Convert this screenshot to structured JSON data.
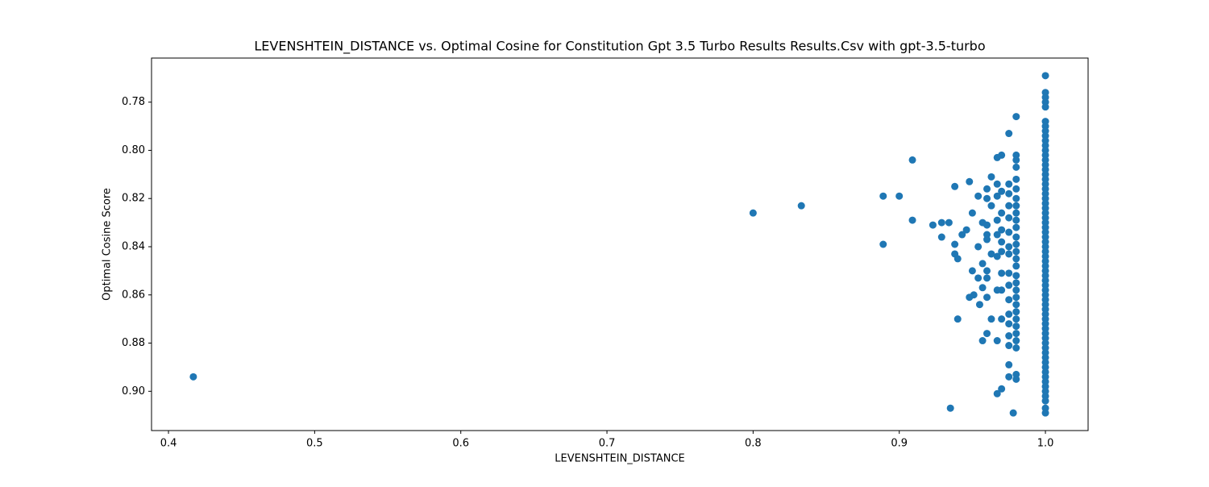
{
  "chart_data": {
    "type": "scatter",
    "title": "LEVENSHTEIN_DISTANCE vs. Optimal Cosine for Constitution Gpt 3.5 Turbo Results Results.Csv with gpt-3.5-turbo",
    "x_label": "LEVENSHTEIN_DISTANCE",
    "y_label": "Optimal Cosine Score",
    "color": "#1f77b4",
    "xlim": [
      0.3884,
      1.0292
    ],
    "ylim": [
      0.9163,
      0.7617
    ],
    "xticks": [
      0.4,
      0.5,
      0.6,
      0.7,
      0.8,
      0.9,
      {
        "value": 1,
        "label": "1.0"
      }
    ],
    "yticks": [
      0.78,
      {
        "value": 0.8,
        "label": "0.80"
      },
      0.82,
      0.84,
      0.86,
      0.88,
      {
        "value": 0.9,
        "label": "0.90"
      }
    ],
    "x": [
      0.417,
      0.8,
      0.833,
      0.889,
      0.889,
      0.9,
      0.909,
      0.909,
      0.923,
      0.929,
      0.934,
      0.929,
      0.938,
      0.938,
      0.938,
      0.94,
      0.94,
      0.935,
      0.943,
      0.946,
      0.948,
      0.95,
      0.95,
      0.948,
      0.951,
      0.954,
      0.954,
      0.954,
      0.955,
      1,
      1,
      1,
      1,
      1,
      1,
      1,
      1,
      1,
      1,
      1,
      1,
      1,
      1,
      1,
      1,
      1,
      1,
      1,
      1,
      1,
      1,
      1,
      1,
      1,
      1,
      1,
      1,
      1,
      1,
      1,
      1,
      1,
      1,
      1,
      1,
      1,
      1,
      1,
      1,
      1,
      1,
      1,
      1,
      1,
      1,
      1,
      1,
      1,
      1,
      1,
      1,
      1,
      1,
      1,
      1,
      1,
      1,
      1,
      1,
      1,
      1,
      1,
      1,
      1,
      1,
      0.98,
      0.98,
      0.98,
      0.98,
      0.98,
      0.98,
      0.98,
      0.98,
      0.98,
      0.98,
      0.98,
      0.98,
      0.98,
      0.98,
      0.98,
      0.98,
      0.98,
      0.98,
      0.98,
      0.98,
      0.98,
      0.98,
      0.98,
      0.98,
      0.98,
      0.98,
      0.98,
      0.98,
      0.98,
      0.978,
      0.975,
      0.975,
      0.975,
      0.975,
      0.975,
      0.975,
      0.975,
      0.975,
      0.975,
      0.975,
      0.975,
      0.975,
      0.975,
      0.975,
      0.975,
      0.975,
      0.975,
      0.97,
      0.97,
      0.97,
      0.97,
      0.97,
      0.97,
      0.97,
      0.97,
      0.97,
      0.97,
      0.967,
      0.967,
      0.967,
      0.967,
      0.967,
      0.967,
      0.967,
      0.967,
      0.967,
      0.963,
      0.963,
      0.963,
      0.963,
      0.96,
      0.96,
      0.96,
      0.96,
      0.96,
      0.96,
      0.96,
      0.96,
      0.96,
      0.957,
      0.957,
      0.957,
      0.957
    ],
    "y": [
      0.894,
      0.826,
      0.823,
      0.839,
      0.819,
      0.819,
      0.804,
      0.829,
      0.831,
      0.83,
      0.83,
      0.836,
      0.815,
      0.839,
      0.843,
      0.845,
      0.87,
      0.907,
      0.835,
      0.833,
      0.813,
      0.826,
      0.85,
      0.861,
      0.86,
      0.819,
      0.84,
      0.853,
      0.864,
      0.769,
      0.776,
      0.778,
      0.78,
      0.782,
      0.788,
      0.79,
      0.792,
      0.794,
      0.796,
      0.798,
      0.8,
      0.802,
      0.804,
      0.806,
      0.808,
      0.81,
      0.812,
      0.814,
      0.816,
      0.818,
      0.82,
      0.822,
      0.824,
      0.826,
      0.828,
      0.83,
      0.832,
      0.834,
      0.836,
      0.838,
      0.84,
      0.842,
      0.844,
      0.846,
      0.848,
      0.85,
      0.852,
      0.854,
      0.856,
      0.858,
      0.86,
      0.862,
      0.864,
      0.866,
      0.868,
      0.87,
      0.872,
      0.874,
      0.876,
      0.878,
      0.88,
      0.882,
      0.884,
      0.886,
      0.888,
      0.89,
      0.892,
      0.894,
      0.896,
      0.898,
      0.9,
      0.902,
      0.904,
      0.907,
      0.909,
      0.786,
      0.802,
      0.804,
      0.807,
      0.812,
      0.816,
      0.82,
      0.823,
      0.826,
      0.829,
      0.832,
      0.836,
      0.839,
      0.842,
      0.845,
      0.848,
      0.852,
      0.855,
      0.858,
      0.861,
      0.864,
      0.867,
      0.87,
      0.873,
      0.876,
      0.879,
      0.882,
      0.893,
      0.895,
      0.909,
      0.793,
      0.814,
      0.818,
      0.823,
      0.828,
      0.834,
      0.84,
      0.843,
      0.851,
      0.856,
      0.862,
      0.868,
      0.872,
      0.877,
      0.881,
      0.889,
      0.894,
      0.802,
      0.817,
      0.826,
      0.833,
      0.838,
      0.842,
      0.851,
      0.858,
      0.87,
      0.899,
      0.803,
      0.814,
      0.819,
      0.829,
      0.835,
      0.844,
      0.858,
      0.879,
      0.901,
      0.811,
      0.823,
      0.843,
      0.87,
      0.816,
      0.82,
      0.831,
      0.835,
      0.837,
      0.85,
      0.853,
      0.861,
      0.876,
      0.83,
      0.847,
      0.857,
      0.879
    ]
  }
}
